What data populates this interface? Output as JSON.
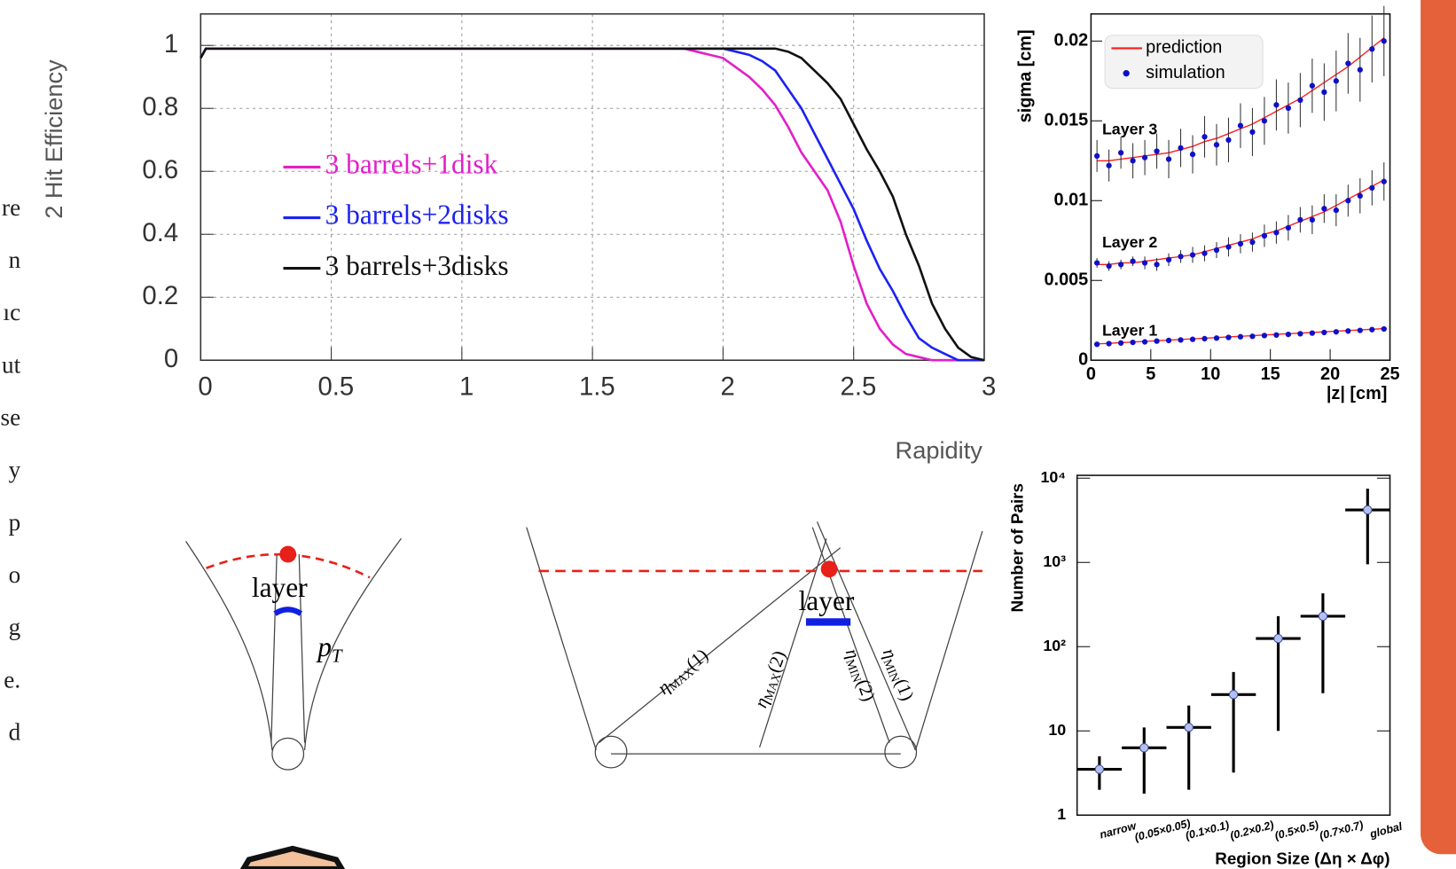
{
  "side_text": [
    "re",
    "n",
    "ıc",
    "ut",
    "se",
    "y",
    "p",
    "o",
    "g",
    "e.",
    "d"
  ],
  "diagrams": {
    "left": {
      "layer": "layer",
      "momentum": [
        "p",
        "T"
      ]
    },
    "right": {
      "layer": "layer",
      "eta_labels": [
        [
          "η",
          "MAX",
          "(1)"
        ],
        [
          "η",
          "MAX",
          "(2)"
        ],
        [
          "η",
          "MIN",
          "(2)"
        ],
        [
          "η",
          "MIN",
          "(1)"
        ]
      ]
    }
  },
  "chart_data": [
    {
      "type": "line",
      "y_label": "2 Hit Efficiency",
      "x_label": "Rapidity",
      "x": [
        0,
        0.02,
        1.8,
        1.85,
        1.9,
        1.95,
        2.0,
        2.05,
        2.1,
        2.15,
        2.2,
        2.25,
        2.3,
        2.35,
        2.4,
        2.45,
        2.5,
        2.55,
        2.6,
        2.65,
        2.7,
        2.75,
        2.8,
        2.85,
        2.9,
        2.95,
        3.0
      ],
      "series": [
        {
          "name": "3 barrels+1disk",
          "color": "#e21fc9",
          "values": [
            0.96,
            0.99,
            0.99,
            0.99,
            0.98,
            0.97,
            0.96,
            0.93,
            0.9,
            0.86,
            0.81,
            0.74,
            0.66,
            0.6,
            0.54,
            0.44,
            0.3,
            0.18,
            0.1,
            0.05,
            0.02,
            0.01,
            0,
            0,
            0,
            0,
            0
          ]
        },
        {
          "name": "3 barrels+2disks",
          "color": "#1c22f0",
          "values": [
            0.96,
            0.99,
            0.99,
            0.99,
            0.99,
            0.99,
            0.99,
            0.98,
            0.97,
            0.95,
            0.92,
            0.86,
            0.8,
            0.72,
            0.64,
            0.56,
            0.48,
            0.38,
            0.29,
            0.22,
            0.14,
            0.07,
            0.04,
            0.02,
            0,
            0,
            0
          ]
        },
        {
          "name": "3 barrels+3disks",
          "color": "#111111",
          "values": [
            0.96,
            0.99,
            0.99,
            0.99,
            0.99,
            0.99,
            0.99,
            0.99,
            0.99,
            0.99,
            0.99,
            0.98,
            0.96,
            0.92,
            0.88,
            0.83,
            0.75,
            0.67,
            0.6,
            0.52,
            0.4,
            0.3,
            0.18,
            0.1,
            0.04,
            0.01,
            0
          ]
        }
      ],
      "xlim": [
        0,
        3
      ],
      "ylim": [
        0,
        1.1
      ],
      "xticks": [
        0,
        0.5,
        1,
        1.5,
        2,
        2.5,
        3
      ],
      "yticks": [
        0,
        0.2,
        0.4,
        0.6,
        0.8,
        1
      ],
      "grid": true,
      "legend": "left"
    },
    {
      "type": "scatter",
      "y_label": "sigma  [cm]",
      "x_label": "|z|  [cm]",
      "series": [
        {
          "name": "prediction",
          "color": "#ff1a1a"
        },
        {
          "name": "simulation",
          "color": "#1010c8"
        }
      ],
      "legend": "upper left",
      "x": [
        0.5,
        1.5,
        2.5,
        3.5,
        4.5,
        5.5,
        6.5,
        7.5,
        8.5,
        9.5,
        10.5,
        11.5,
        12.5,
        13.5,
        14.5,
        15.5,
        16.5,
        17.5,
        18.5,
        19.5,
        20.5,
        21.5,
        22.5,
        23.5,
        24.5
      ],
      "layers": [
        {
          "label": "Layer 3",
          "prediction": [
            0.0125,
            0.0125,
            0.0126,
            0.0127,
            0.0128,
            0.0129,
            0.013,
            0.0132,
            0.0134,
            0.0137,
            0.0139,
            0.0142,
            0.0145,
            0.0148,
            0.0152,
            0.0156,
            0.016,
            0.0164,
            0.0169,
            0.0174,
            0.0179,
            0.0184,
            0.019,
            0.0196,
            0.0202
          ],
          "simulation": [
            0.0128,
            0.0122,
            0.013,
            0.0125,
            0.0127,
            0.0131,
            0.0126,
            0.0133,
            0.0129,
            0.014,
            0.0135,
            0.0138,
            0.0147,
            0.0143,
            0.015,
            0.016,
            0.0158,
            0.0163,
            0.0172,
            0.0168,
            0.0175,
            0.0186,
            0.0182,
            0.0195,
            0.02
          ],
          "errors": [
            0.001,
            0.001,
            0.001,
            0.0011,
            0.0011,
            0.0011,
            0.0012,
            0.0012,
            0.0012,
            0.0013,
            0.0013,
            0.0014,
            0.0014,
            0.0015,
            0.0015,
            0.0016,
            0.0016,
            0.0017,
            0.0017,
            0.0018,
            0.0019,
            0.0019,
            0.002,
            0.0021,
            0.0022
          ]
        },
        {
          "label": "Layer 2",
          "prediction": [
            0.006,
            0.006,
            0.0061,
            0.0061,
            0.0062,
            0.0063,
            0.0064,
            0.0065,
            0.0066,
            0.0068,
            0.007,
            0.0072,
            0.0074,
            0.0076,
            0.0079,
            0.0081,
            0.0084,
            0.0087,
            0.009,
            0.0093,
            0.0097,
            0.0101,
            0.0105,
            0.0109,
            0.0113
          ],
          "simulation": [
            0.0061,
            0.0059,
            0.006,
            0.0062,
            0.0061,
            0.006,
            0.0063,
            0.0065,
            0.0066,
            0.0067,
            0.0069,
            0.0071,
            0.0073,
            0.0074,
            0.0078,
            0.008,
            0.0083,
            0.0088,
            0.0088,
            0.0095,
            0.0094,
            0.01,
            0.0103,
            0.0108,
            0.0112
          ],
          "errors": [
            0.0003,
            0.0003,
            0.0003,
            0.0003,
            0.0004,
            0.0004,
            0.0004,
            0.0004,
            0.0005,
            0.0005,
            0.0005,
            0.0006,
            0.0006,
            0.0006,
            0.0007,
            0.0007,
            0.0008,
            0.0008,
            0.0009,
            0.0009,
            0.001,
            0.001,
            0.0011,
            0.0011,
            0.0012
          ]
        },
        {
          "label": "Layer 1",
          "prediction": [
            0.00102,
            0.00106,
            0.0011,
            0.00114,
            0.00118,
            0.00122,
            0.00126,
            0.0013,
            0.00134,
            0.00138,
            0.00142,
            0.00146,
            0.0015,
            0.00154,
            0.00158,
            0.00162,
            0.00166,
            0.0017,
            0.00174,
            0.00178,
            0.00182,
            0.00186,
            0.0019,
            0.00194,
            0.00198
          ],
          "simulation": [
            0.001,
            0.00104,
            0.00108,
            0.00112,
            0.00115,
            0.0012,
            0.00124,
            0.00127,
            0.00131,
            0.00135,
            0.00139,
            0.00143,
            0.00147,
            0.0015,
            0.00155,
            0.00158,
            0.00162,
            0.00166,
            0.0017,
            0.00174,
            0.00178,
            0.00183,
            0.00187,
            0.00192,
            0.00196
          ],
          "errors": [
            0.0001,
            0.0001,
            0.0001,
            0.0001,
            0.0001,
            0.0001,
            0.0001,
            0.0001,
            0.0001,
            0.0001,
            0.0001,
            0.0001,
            0.0001,
            0.0001,
            0.0001,
            0.0001,
            0.0001,
            0.0001,
            0.0001,
            0.0001,
            0.0001,
            0.0001,
            0.0001,
            0.0001,
            0.0001
          ]
        }
      ],
      "xlim": [
        0,
        25
      ],
      "ylim": [
        0,
        0.0217
      ],
      "xticks": [
        0,
        5,
        10,
        15,
        20,
        25
      ],
      "yticks": [
        0,
        0.005,
        0.01,
        0.015,
        0.02
      ]
    },
    {
      "type": "errorbar",
      "y_label": "Number of Pairs",
      "x_label": "Region Size (Δη × Δφ)",
      "categories": [
        "narrow",
        "(0.05×0.05)",
        "(0.1×0.1)",
        "(0.2×0.2)",
        "(0.5×0.5)",
        "(0.7×0.7)",
        "global"
      ],
      "values": [
        3.5,
        6.3,
        11,
        27,
        125,
        230,
        4200
      ],
      "lower": [
        2,
        1.8,
        2,
        3.2,
        10,
        28,
        950
      ],
      "upper": [
        5,
        11,
        20,
        50,
        230,
        430,
        7500
      ],
      "color": "#000000",
      "marker_color": "#b4c0f0",
      "log_scale": true,
      "ylim": [
        1,
        10800
      ],
      "yticks": [
        1,
        10,
        {
          "value": 100,
          "label": "10²"
        },
        {
          "value": 1000,
          "label": "10³"
        },
        {
          "value": 10000,
          "label": "10⁴"
        }
      ]
    }
  ]
}
